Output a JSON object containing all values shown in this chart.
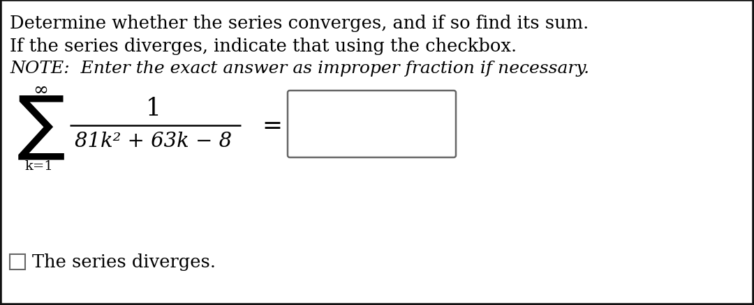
{
  "fig_bg": "#ffffff",
  "line1": "Determine whether the series converges, and if so find its sum.",
  "line2": "If the series diverges, indicate that using the checkbox.",
  "line3": "NOTE:  Enter the exact answer as improper fraction if necessary.",
  "numerator": "1",
  "denominator": "81k² + 63k − 8",
  "infinity": "∞",
  "k_eq_1": "k=1",
  "equals": "=",
  "diverges_text": "The series diverges.",
  "fs_main": 18.5,
  "fs_note": 18.0,
  "fs_math": 21,
  "fs_sigma": 52,
  "fs_small": 14
}
